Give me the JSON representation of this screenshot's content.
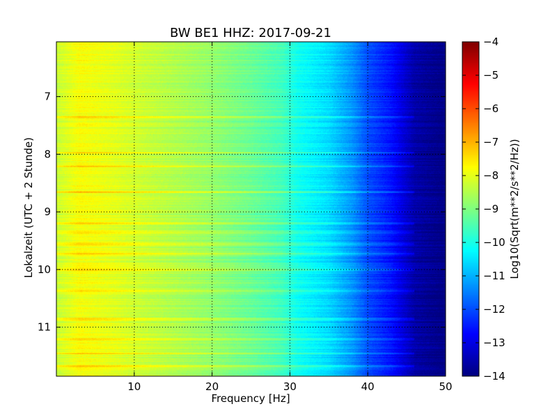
{
  "chart_data": {
    "type": "heatmap",
    "title": "BW BE1 HHZ: 2017-09-21",
    "xlabel": "Frequency [Hz]",
    "ylabel": "Lokalzeit (UTC + 2 Stunde)",
    "colorbar_label": "Log10(Sqrt(m**2/s**2/Hz))",
    "colormap": "jet",
    "xlim": [
      0,
      50
    ],
    "ylim": [
      11.85,
      6.05
    ],
    "clim": [
      -14,
      -4
    ],
    "x_ticks": [
      10,
      20,
      30,
      40,
      50
    ],
    "y_ticks": [
      7,
      8,
      9,
      10,
      11
    ],
    "colorbar_ticks": [
      -4,
      -5,
      -6,
      -7,
      -8,
      -9,
      -10,
      -11,
      -12,
      -13,
      -14
    ],
    "grid": true,
    "spectrum_profile": [
      [
        0,
        -8.3
      ],
      [
        3,
        -7.8
      ],
      [
        7,
        -8.0
      ],
      [
        10,
        -8.2
      ],
      [
        15,
        -8.5
      ],
      [
        20,
        -8.8
      ],
      [
        25,
        -9.2
      ],
      [
        29,
        -9.6
      ],
      [
        31,
        -10.1
      ],
      [
        35,
        -10.6
      ],
      [
        38,
        -11.3
      ],
      [
        40,
        -12.0
      ],
      [
        43,
        -12.6
      ],
      [
        46,
        -13.6
      ],
      [
        50,
        -14.0
      ]
    ],
    "bright_bands_hours": [
      7.35,
      7.97,
      8.2,
      8.65,
      9.2,
      9.35,
      9.55,
      9.72,
      10.0,
      10.37,
      10.85,
      11.2,
      11.45,
      11.67
    ]
  }
}
